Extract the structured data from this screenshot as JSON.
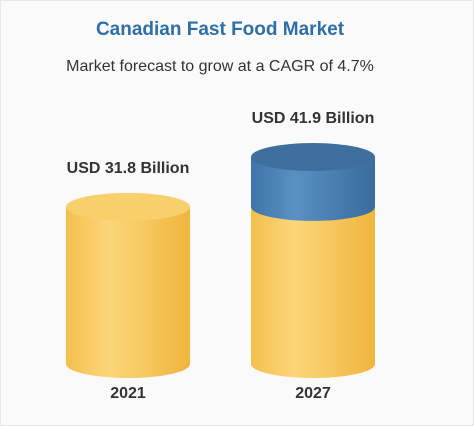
{
  "chart_data": {
    "type": "cylinder",
    "title": "Canadian Fast Food Market",
    "subtitle": "Market forecast to grow at a CAGR of 4.7%",
    "categories": [
      "2021",
      "2027"
    ],
    "values": [
      31.8,
      41.9
    ],
    "value_labels": [
      "USD 31.8 Billion",
      "USD 41.9 Billion"
    ],
    "color": "#f6c85a",
    "growth_color": "#4a80b4"
  }
}
